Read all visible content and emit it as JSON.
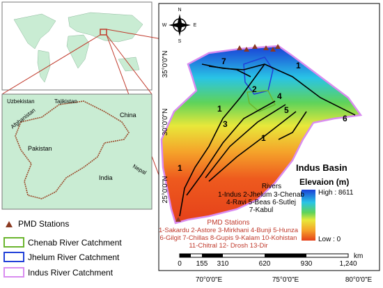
{
  "inset": {
    "labels": [
      "Uzbekistan",
      "Tajikistan",
      "Afghanistan",
      "China",
      "Pakistan",
      "India",
      "Nepal"
    ]
  },
  "main_map": {
    "compass": [
      "N",
      "E",
      "S",
      "W"
    ],
    "latitude_labels": [
      "35°0'0\"N",
      "30°0'0\"N",
      "25°0'0\"N"
    ],
    "longitude_labels": [
      "70°0'0\"E",
      "75°0'0\"E",
      "80°0'0\"E"
    ],
    "river_numbers": [
      "7",
      "1",
      "2",
      "3",
      "4",
      "5",
      "6",
      "1",
      "1",
      "1"
    ],
    "title": "Indus Basin",
    "elevation_title": "Elevaion (m)",
    "high": "High : 8611",
    "low": "Low : 0",
    "rivers": {
      "title": "Rivers",
      "lines": [
        "1-Indus  2-Jhelum  3-Chenab",
        "4-Ravi   5-Beas   6-Sutlej",
        "7-Kabul"
      ]
    },
    "stations": {
      "title": "PMD Stations",
      "lines": [
        "1-Sakardu  2-Astore  3-Mirkhani  4-Bunji  5-Hunza",
        "6-Gilgit  7-Chillas  8-Gupis  9-Kalam  10-Kohistan",
        "11-Chitral  12- Drosh  13-Dir"
      ]
    },
    "scale": {
      "labels": [
        "0",
        "155",
        "310",
        "620",
        "930",
        "1,240"
      ],
      "unit": "km"
    }
  },
  "legend": [
    "PMD Stations",
    "Chenab River Catchment",
    "Jhelum River Catchment",
    "Indus River Catchment"
  ]
}
